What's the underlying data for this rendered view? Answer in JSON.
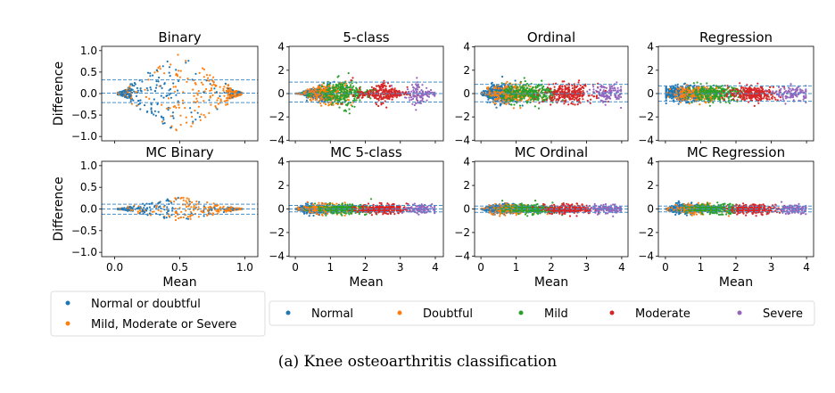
{
  "caption": "(a) Knee osteoarthritis classification",
  "colors": {
    "blue": "#1f77b4",
    "orange": "#ff7f0e",
    "green": "#2ca02c",
    "red": "#d62728",
    "purple": "#9467bd"
  },
  "chart_data": [
    {
      "type": "scatter",
      "title": "Binary",
      "ylabel": "Difference",
      "xlabel": "",
      "xlim": [
        -0.1,
        1.1
      ],
      "ylim": [
        -1.1,
        1.1
      ],
      "yticks": [
        "1.0",
        "0.5",
        "0.0",
        "−0.5",
        "−1.0"
      ],
      "ytick_values": [
        1,
        0.5,
        0,
        -0.5,
        -1
      ],
      "xtick_values": [
        0,
        0.5,
        1
      ],
      "xticks": [],
      "bias_lines": [
        0.32,
        0.01,
        -0.21
      ],
      "classes": "binary"
    },
    {
      "type": "scatter",
      "title": "5-class",
      "ylabel": "",
      "xlabel": "",
      "xlim": [
        -0.18,
        4.23
      ],
      "ylim": [
        -4.05,
        4.05
      ],
      "yticks": [
        "4",
        "2",
        "0",
        "−2",
        "−4"
      ],
      "ytick_values": [
        4,
        2,
        0,
        -2,
        -4
      ],
      "xtick_values": [
        0,
        1,
        2,
        3,
        4
      ],
      "xticks": [],
      "bias_lines": [
        0.98,
        0.0,
        -0.73
      ],
      "classes": "five"
    },
    {
      "type": "scatter",
      "title": "Ordinal",
      "ylabel": "",
      "xlabel": "",
      "xlim": [
        -0.18,
        4.18
      ],
      "ylim": [
        -4.05,
        4.05
      ],
      "yticks": [
        "4",
        "2",
        "0",
        "−2",
        "−4"
      ],
      "ytick_values": [
        4,
        2,
        0,
        -2,
        -4
      ],
      "xtick_values": [
        0,
        1,
        2,
        3,
        4
      ],
      "xticks": [],
      "bias_lines": [
        0.79,
        0.0,
        -0.71
      ],
      "classes": "five"
    },
    {
      "type": "scatter",
      "title": "Regression",
      "ylabel": "",
      "xlabel": "",
      "xlim": [
        -0.2,
        4.2
      ],
      "ylim": [
        -4.05,
        4.05
      ],
      "yticks": [
        "4",
        "2",
        "0",
        "−2",
        "−4"
      ],
      "ytick_values": [
        4,
        2,
        0,
        -2,
        -4
      ],
      "xtick_values": [
        0,
        1,
        2,
        3,
        4
      ],
      "xticks": [],
      "bias_lines": [
        0.66,
        0.0,
        -0.66
      ],
      "classes": "five"
    },
    {
      "type": "scatter",
      "title": "MC Binary",
      "ylabel": "Difference",
      "xlabel": "Mean",
      "xlim": [
        -0.1,
        1.1
      ],
      "ylim": [
        -1.1,
        1.1
      ],
      "yticks": [
        "1.0",
        "0.5",
        "0.0",
        "−0.5",
        "−1.0"
      ],
      "ytick_values": [
        1,
        0.5,
        0,
        -0.5,
        -1
      ],
      "xtick_values": [
        0,
        0.5,
        1
      ],
      "xticks": [
        "0.0",
        "0.5",
        "1.0"
      ],
      "bias_lines": [
        0.11,
        0.0,
        -0.12
      ],
      "classes": "binary"
    },
    {
      "type": "scatter",
      "title": "MC 5-class",
      "ylabel": "",
      "xlabel": "Mean",
      "xlim": [
        -0.18,
        4.23
      ],
      "ylim": [
        -4.05,
        4.05
      ],
      "yticks": [
        "4",
        "2",
        "0",
        "−2",
        "−4"
      ],
      "ytick_values": [
        4,
        2,
        0,
        -2,
        -4
      ],
      "xtick_values": [
        0,
        1,
        2,
        3,
        4
      ],
      "xticks": [
        "0",
        "1",
        "2",
        "3",
        "4"
      ],
      "bias_lines": [
        0.3,
        0.0,
        -0.25
      ],
      "classes": "five"
    },
    {
      "type": "scatter",
      "title": "MC Ordinal",
      "ylabel": "",
      "xlabel": "Mean",
      "xlim": [
        -0.18,
        4.18
      ],
      "ylim": [
        -4.05,
        4.05
      ],
      "yticks": [
        "4",
        "2",
        "0",
        "−2",
        "−4"
      ],
      "ytick_values": [
        4,
        2,
        0,
        -2,
        -4
      ],
      "xtick_values": [
        0,
        1,
        2,
        3,
        4
      ],
      "xticks": [
        "0",
        "1",
        "2",
        "3",
        "4"
      ],
      "bias_lines": [
        0.25,
        0.0,
        -0.28
      ],
      "classes": "five"
    },
    {
      "type": "scatter",
      "title": "MC Regression",
      "ylabel": "",
      "xlabel": "Mean",
      "xlim": [
        -0.2,
        4.2
      ],
      "ylim": [
        -4.05,
        4.05
      ],
      "yticks": [
        "4",
        "2",
        "0",
        "−2",
        "−4"
      ],
      "ytick_values": [
        4,
        2,
        0,
        -2,
        -4
      ],
      "xtick_values": [
        0,
        1,
        2,
        3,
        4
      ],
      "xticks": [
        "0",
        "1",
        "2",
        "3",
        "4"
      ],
      "bias_lines": [
        0.25,
        0.0,
        -0.25
      ],
      "classes": "five"
    }
  ],
  "legend_binary": [
    {
      "label": "Normal or doubtful",
      "color": "#1f77b4"
    },
    {
      "label": "Mild, Moderate or Severe",
      "color": "#ff7f0e"
    }
  ],
  "legend_five": [
    {
      "label": "Normal",
      "color": "#1f77b4"
    },
    {
      "label": "Doubtful",
      "color": "#ff7f0e"
    },
    {
      "label": "Mild",
      "color": "#2ca02c"
    },
    {
      "label": "Moderate",
      "color": "#d62728"
    },
    {
      "label": "Severe",
      "color": "#9467bd"
    }
  ]
}
